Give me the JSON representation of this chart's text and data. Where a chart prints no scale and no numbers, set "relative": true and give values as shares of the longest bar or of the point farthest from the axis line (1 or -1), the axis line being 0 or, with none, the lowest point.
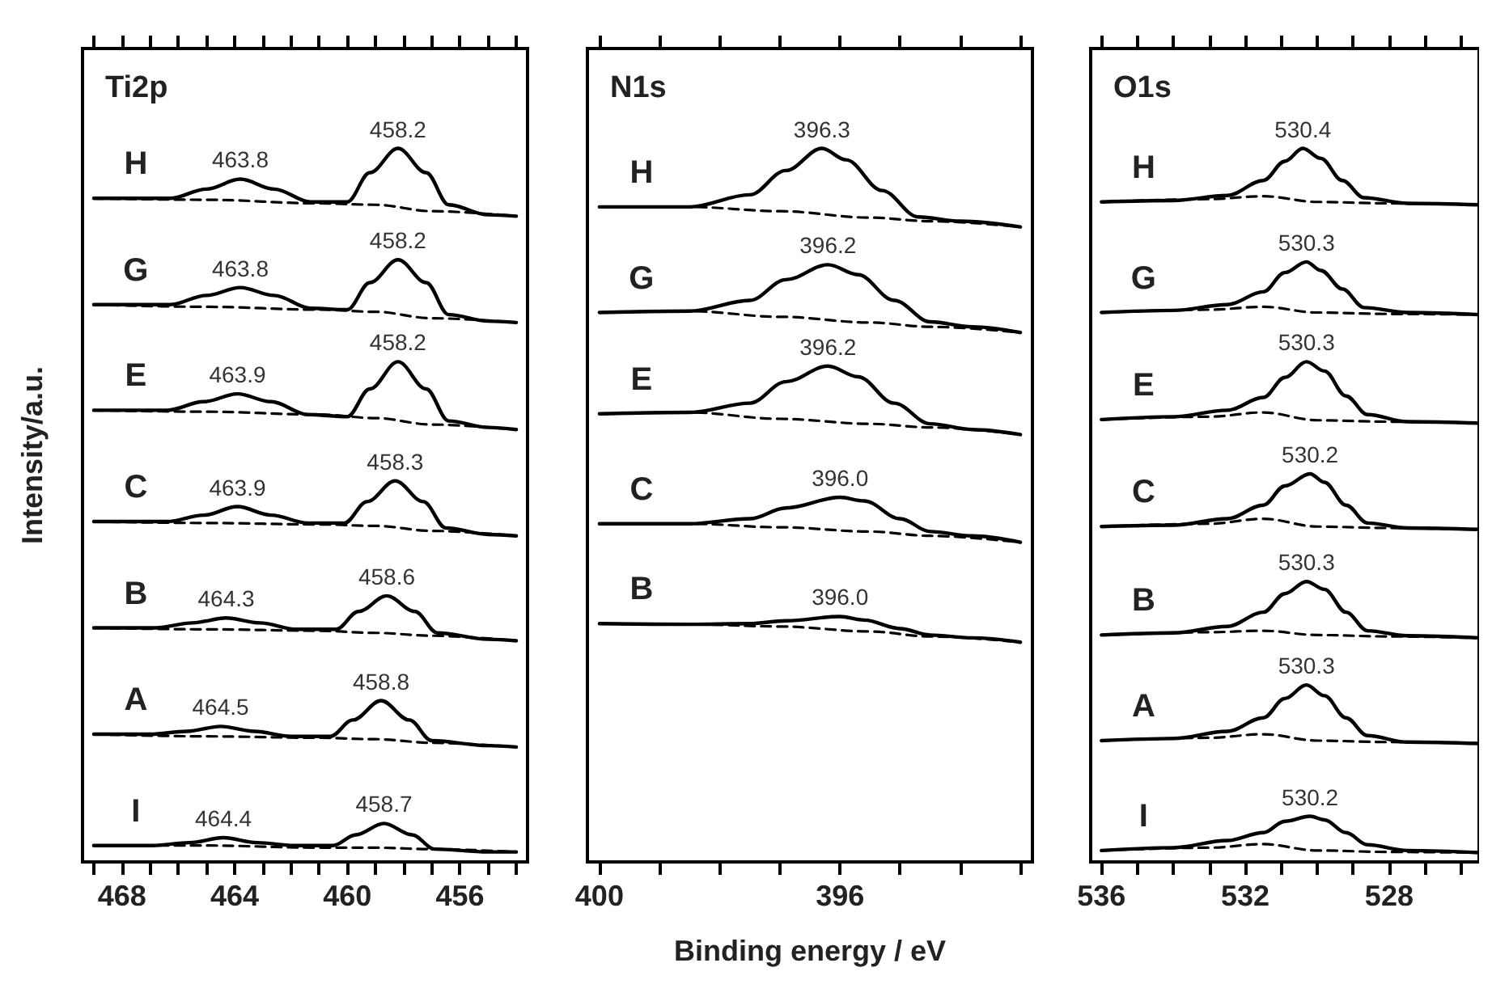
{
  "chart_data": [
    {
      "type": "line",
      "title": "Ti2p",
      "ylabel": "Intensity/a.u.",
      "relative": true,
      "marker": "none",
      "line_style": "solid",
      "tick_labels": "x",
      "xlim": [
        469.4,
        453.6
      ],
      "xticks": [
        {
          "value": 469,
          "label": null
        },
        468,
        {
          "value": 467,
          "label": null
        },
        {
          "value": 466,
          "label": null
        },
        {
          "value": 465,
          "label": null
        },
        464,
        {
          "value": 463,
          "label": null
        },
        {
          "value": 462,
          "label": null
        },
        {
          "value": 461,
          "label": null
        },
        460,
        {
          "value": 459,
          "label": null
        },
        {
          "value": 458,
          "label": null
        },
        {
          "value": 457,
          "label": null
        },
        456,
        {
          "value": 455,
          "label": null
        },
        {
          "value": 454,
          "label": null
        }
      ],
      "series": [
        {
          "name": "H",
          "color": "#000000",
          "x": [
            469,
            466.3,
            465,
            463.8,
            462.6,
            461.3,
            460,
            459.2,
            458.2,
            457.2,
            456.4,
            455,
            454
          ],
          "values": [
            0.93,
            0.93,
            0.943,
            0.957,
            0.943,
            0.925,
            0.925,
            0.966,
            1.0,
            0.966,
            0.921,
            0.907,
            0.905
          ]
        },
        {
          "color": "#000000",
          "line_style": "dashed",
          "x": [
            469,
            465,
            461,
            459,
            457,
            454
          ],
          "values": [
            0.93,
            0.928,
            0.923,
            0.921,
            0.912,
            0.905
          ]
        },
        {
          "name": "G",
          "color": "#000000",
          "x": [
            469,
            466.3,
            465,
            463.8,
            462.6,
            461.3,
            460,
            459.2,
            458.2,
            457.2,
            456.4,
            455,
            454
          ],
          "values": [
            0.781,
            0.781,
            0.794,
            0.805,
            0.794,
            0.776,
            0.774,
            0.812,
            0.844,
            0.812,
            0.767,
            0.758,
            0.756
          ]
        },
        {
          "color": "#000000",
          "line_style": "dashed",
          "x": [
            469,
            465,
            461,
            459,
            457,
            454
          ],
          "values": [
            0.781,
            0.778,
            0.774,
            0.771,
            0.762,
            0.756
          ]
        },
        {
          "name": "E",
          "color": "#000000",
          "x": [
            469,
            466.4,
            465.1,
            463.9,
            462.7,
            461.4,
            460,
            459.2,
            458.2,
            457.2,
            456.4,
            455,
            454
          ],
          "values": [
            0.633,
            0.633,
            0.645,
            0.656,
            0.645,
            0.627,
            0.624,
            0.663,
            0.701,
            0.663,
            0.618,
            0.609,
            0.606
          ]
        },
        {
          "color": "#000000",
          "line_style": "dashed",
          "x": [
            469,
            465,
            461,
            459,
            457,
            454
          ],
          "values": [
            0.633,
            0.631,
            0.627,
            0.622,
            0.613,
            0.606
          ]
        },
        {
          "name": "C",
          "color": "#000000",
          "x": [
            469,
            466.4,
            465.1,
            463.9,
            462.7,
            461.4,
            460.1,
            459.3,
            458.3,
            457.3,
            456.5,
            455,
            454
          ],
          "values": [
            0.477,
            0.477,
            0.486,
            0.498,
            0.486,
            0.475,
            0.475,
            0.505,
            0.534,
            0.505,
            0.468,
            0.459,
            0.457
          ]
        },
        {
          "color": "#000000",
          "line_style": "dashed",
          "x": [
            469,
            465,
            461,
            459,
            457,
            454
          ],
          "values": [
            0.477,
            0.475,
            0.473,
            0.471,
            0.464,
            0.457
          ]
        },
        {
          "name": "B",
          "color": "#000000",
          "x": [
            469,
            466.8,
            465.5,
            464.3,
            463.1,
            461.8,
            460.4,
            459.6,
            458.6,
            457.6,
            456.8,
            455,
            454
          ],
          "values": [
            0.328,
            0.328,
            0.335,
            0.342,
            0.335,
            0.326,
            0.326,
            0.351,
            0.373,
            0.351,
            0.321,
            0.312,
            0.31
          ]
        },
        {
          "color": "#000000",
          "line_style": "dashed",
          "x": [
            469,
            465,
            461,
            459,
            457,
            454
          ],
          "values": [
            0.328,
            0.326,
            0.324,
            0.321,
            0.317,
            0.31
          ]
        },
        {
          "name": "A",
          "color": "#000000",
          "x": [
            469,
            467,
            465.7,
            464.5,
            463.3,
            462,
            460.6,
            459.8,
            458.8,
            457.8,
            457,
            455,
            454
          ],
          "values": [
            0.179,
            0.179,
            0.183,
            0.19,
            0.183,
            0.176,
            0.176,
            0.199,
            0.226,
            0.199,
            0.17,
            0.163,
            0.161
          ]
        },
        {
          "color": "#000000",
          "line_style": "dashed",
          "x": [
            469,
            465,
            461,
            459,
            457,
            454
          ],
          "values": [
            0.179,
            0.176,
            0.174,
            0.172,
            0.167,
            0.161
          ]
        },
        {
          "name": "I",
          "color": "#000000",
          "x": [
            469,
            466.9,
            465.6,
            464.4,
            463.2,
            461.9,
            460.5,
            459.7,
            458.7,
            457.7,
            456.9,
            455,
            454
          ],
          "values": [
            0.023,
            0.023,
            0.027,
            0.034,
            0.027,
            0.023,
            0.023,
            0.038,
            0.054,
            0.038,
            0.018,
            0.014,
            0.014
          ]
        },
        {
          "color": "#000000",
          "line_style": "dashed",
          "x": [
            469,
            465,
            461,
            459,
            457,
            454
          ],
          "values": [
            0.023,
            0.023,
            0.02,
            0.02,
            0.018,
            0.014
          ]
        }
      ],
      "annotations": [
        {
          "text": "463.8",
          "x": 463.8,
          "y": 0.957
        },
        {
          "text": "458.2",
          "x": 458.2,
          "y": 1.0
        },
        {
          "text": "463.8",
          "x": 463.8,
          "y": 0.805
        },
        {
          "text": "458.2",
          "x": 458.2,
          "y": 0.844
        },
        {
          "text": "463.9",
          "x": 463.9,
          "y": 0.656
        },
        {
          "text": "458.2",
          "x": 458.2,
          "y": 0.701
        },
        {
          "text": "463.9",
          "x": 463.9,
          "y": 0.498
        },
        {
          "text": "458.3",
          "x": 458.3,
          "y": 0.534
        },
        {
          "text": "464.3",
          "x": 464.3,
          "y": 0.342
        },
        {
          "text": "458.6",
          "x": 458.6,
          "y": 0.373
        },
        {
          "text": "464.5",
          "x": 464.5,
          "y": 0.19
        },
        {
          "text": "458.8",
          "x": 458.8,
          "y": 0.226
        },
        {
          "text": "464.4",
          "x": 464.4,
          "y": 0.034
        },
        {
          "text": "458.7",
          "x": 458.7,
          "y": 0.054
        }
      ]
    },
    {
      "type": "line",
      "title": "N1s",
      "xlabel": "Binding energy / eV",
      "relative": true,
      "marker": "none",
      "line_style": "solid",
      "tick_labels": "x",
      "xlim": [
        400.2,
        392.8
      ],
      "xticks": [
        400,
        {
          "value": 399,
          "label": null
        },
        {
          "value": 398,
          "label": null
        },
        {
          "value": 397,
          "label": null
        },
        396,
        {
          "value": 395,
          "label": null
        },
        {
          "value": 394,
          "label": null
        },
        {
          "value": 393,
          "label": null
        }
      ],
      "series": [
        {
          "name": "H",
          "color": "#000000",
          "x": [
            400,
            398.5,
            397.5,
            396.9,
            396.3,
            395.9,
            395.3,
            394.7,
            394,
            393
          ],
          "values": [
            0.918,
            0.918,
            0.935,
            0.969,
            1.0,
            0.984,
            0.941,
            0.904,
            0.898,
            0.89
          ]
        },
        {
          "color": "#000000",
          "line_style": "dashed",
          "x": [
            400,
            398.5,
            397,
            395.5,
            394.5,
            393
          ],
          "values": [
            0.918,
            0.918,
            0.912,
            0.903,
            0.898,
            0.89
          ]
        },
        {
          "name": "G",
          "color": "#000000",
          "x": [
            400,
            398.5,
            397.5,
            396.9,
            396.2,
            395.7,
            395.1,
            394.5,
            393.8,
            393
          ],
          "values": [
            0.77,
            0.772,
            0.787,
            0.816,
            0.837,
            0.823,
            0.787,
            0.757,
            0.75,
            0.742
          ]
        },
        {
          "color": "#000000",
          "line_style": "dashed",
          "x": [
            400,
            398.5,
            397,
            395.5,
            394.5,
            393
          ],
          "values": [
            0.77,
            0.772,
            0.764,
            0.756,
            0.75,
            0.742
          ]
        },
        {
          "name": "E",
          "color": "#000000",
          "x": [
            400,
            398.5,
            397.5,
            396.9,
            396.2,
            395.7,
            395.1,
            394.5,
            393.8,
            393
          ],
          "values": [
            0.628,
            0.63,
            0.643,
            0.673,
            0.695,
            0.68,
            0.643,
            0.614,
            0.606,
            0.599
          ]
        },
        {
          "color": "#000000",
          "line_style": "dashed",
          "x": [
            400,
            398.5,
            397,
            395.5,
            394.5,
            393
          ],
          "values": [
            0.628,
            0.63,
            0.621,
            0.614,
            0.609,
            0.599
          ]
        },
        {
          "name": "C",
          "color": "#000000",
          "x": [
            400,
            398.5,
            397.5,
            396.9,
            396.0,
            395.6,
            395,
            394.5,
            393.8,
            393
          ],
          "values": [
            0.474,
            0.474,
            0.481,
            0.496,
            0.511,
            0.506,
            0.481,
            0.463,
            0.457,
            0.448
          ]
        },
        {
          "color": "#000000",
          "line_style": "dashed",
          "x": [
            400,
            398.5,
            397,
            395.5,
            394.5,
            393
          ],
          "values": [
            0.474,
            0.474,
            0.469,
            0.463,
            0.457,
            0.448
          ]
        },
        {
          "name": "B",
          "color": "#000000",
          "x": [
            400,
            398.5,
            397.5,
            396.9,
            396.0,
            395.6,
            395,
            394.5,
            393.8,
            393
          ],
          "values": [
            0.334,
            0.333,
            0.334,
            0.338,
            0.344,
            0.339,
            0.327,
            0.318,
            0.314,
            0.308
          ]
        },
        {
          "color": "#000000",
          "line_style": "dashed",
          "x": [
            400,
            398.5,
            397,
            395.5,
            394.5,
            393
          ],
          "values": [
            0.334,
            0.333,
            0.33,
            0.323,
            0.316,
            0.308
          ]
        }
      ],
      "annotations": [
        {
          "text": "396.3",
          "x": 396.3,
          "y": 1.0
        },
        {
          "text": "396.2",
          "x": 396.2,
          "y": 0.837
        },
        {
          "text": "396.2",
          "x": 396.2,
          "y": 0.695
        },
        {
          "text": "396.0",
          "x": 396.0,
          "y": 0.511
        },
        {
          "text": "396.0",
          "x": 396.0,
          "y": 0.344
        }
      ]
    },
    {
      "type": "line",
      "title": "O1s",
      "relative": true,
      "marker": "none",
      "line_style": "solid",
      "tick_labels": "x",
      "xlim": [
        536.3,
        525.5
      ],
      "xticks": [
        536,
        {
          "value": 535,
          "label": null
        },
        {
          "value": 534,
          "label": null
        },
        {
          "value": 533,
          "label": null
        },
        532,
        {
          "value": 531,
          "label": null
        },
        {
          "value": 530,
          "label": null
        },
        {
          "value": 529,
          "label": null
        },
        528,
        {
          "value": 527,
          "label": null
        },
        {
          "value": 526,
          "label": null
        }
      ],
      "series": [
        {
          "name": "H",
          "color": "#000000",
          "x": [
            536,
            534,
            532.5,
            531.5,
            530.9,
            530.4,
            529.9,
            529.3,
            528.7,
            527.5,
            525.5
          ],
          "values": [
            0.925,
            0.927,
            0.934,
            0.955,
            0.982,
            1.0,
            0.986,
            0.955,
            0.931,
            0.923,
            0.921
          ]
        },
        {
          "color": "#000000",
          "line_style": "dashed",
          "x": [
            536,
            533,
            531.5,
            530,
            528,
            525.5
          ],
          "values": [
            0.925,
            0.929,
            0.933,
            0.925,
            0.923,
            0.921
          ]
        },
        {
          "name": "G",
          "color": "#000000",
          "x": [
            536,
            534,
            532.5,
            531.5,
            530.9,
            530.3,
            529.9,
            529.3,
            528.7,
            527.5,
            525.5
          ],
          "values": [
            0.77,
            0.773,
            0.781,
            0.799,
            0.826,
            0.841,
            0.829,
            0.803,
            0.777,
            0.77,
            0.767
          ]
        },
        {
          "color": "#000000",
          "line_style": "dashed",
          "x": [
            536,
            533,
            531.5,
            530,
            528,
            525.5
          ],
          "values": [
            0.77,
            0.774,
            0.778,
            0.77,
            0.768,
            0.767
          ]
        },
        {
          "name": "E",
          "color": "#000000",
          "x": [
            536,
            534,
            532.5,
            531.5,
            530.9,
            530.3,
            529.8,
            529.2,
            528.6,
            527.5,
            525.5
          ],
          "values": [
            0.62,
            0.624,
            0.633,
            0.651,
            0.679,
            0.701,
            0.688,
            0.653,
            0.627,
            0.617,
            0.615
          ]
        },
        {
          "color": "#000000",
          "line_style": "dashed",
          "x": [
            536,
            533,
            531.5,
            530,
            528,
            525.5
          ],
          "values": [
            0.62,
            0.624,
            0.63,
            0.619,
            0.617,
            0.615
          ]
        },
        {
          "name": "C",
          "color": "#000000",
          "x": [
            536,
            534,
            532.5,
            531.5,
            530.9,
            530.2,
            529.8,
            529.2,
            528.6,
            527.5,
            525.5
          ],
          "values": [
            0.47,
            0.472,
            0.481,
            0.5,
            0.527,
            0.544,
            0.532,
            0.5,
            0.475,
            0.468,
            0.466
          ]
        },
        {
          "color": "#000000",
          "line_style": "dashed",
          "x": [
            536,
            533,
            531.5,
            530,
            528,
            525.5
          ],
          "values": [
            0.47,
            0.474,
            0.481,
            0.47,
            0.468,
            0.466
          ]
        },
        {
          "name": "B",
          "color": "#000000",
          "x": [
            536,
            534,
            532.5,
            531.5,
            530.9,
            530.3,
            529.8,
            529.2,
            528.6,
            527.5,
            525.5
          ],
          "values": [
            0.318,
            0.321,
            0.33,
            0.35,
            0.376,
            0.393,
            0.382,
            0.35,
            0.324,
            0.317,
            0.314
          ]
        },
        {
          "color": "#000000",
          "line_style": "dashed",
          "x": [
            536,
            533,
            531.5,
            530,
            528,
            525.5
          ],
          "values": [
            0.318,
            0.322,
            0.324,
            0.318,
            0.316,
            0.314
          ]
        },
        {
          "name": "A",
          "color": "#000000",
          "x": [
            536,
            534,
            532.5,
            531.5,
            530.9,
            530.3,
            529.8,
            529.2,
            528.6,
            527.5,
            525.5
          ],
          "values": [
            0.17,
            0.173,
            0.183,
            0.202,
            0.229,
            0.248,
            0.233,
            0.202,
            0.177,
            0.168,
            0.166
          ]
        },
        {
          "color": "#000000",
          "line_style": "dashed",
          "x": [
            536,
            533,
            531.5,
            530,
            528,
            525.5
          ],
          "values": [
            0.17,
            0.174,
            0.179,
            0.17,
            0.168,
            0.166
          ]
        },
        {
          "name": "I",
          "color": "#000000",
          "x": [
            536,
            534,
            532.5,
            531.5,
            530.9,
            530.2,
            529.8,
            529.2,
            528.6,
            527.5,
            525.5
          ],
          "values": [
            0.016,
            0.02,
            0.03,
            0.041,
            0.057,
            0.064,
            0.059,
            0.041,
            0.024,
            0.016,
            0.013
          ]
        },
        {
          "color": "#000000",
          "line_style": "dashed",
          "x": [
            536,
            533,
            531.5,
            530,
            528,
            525.5
          ],
          "values": [
            0.016,
            0.02,
            0.025,
            0.016,
            0.014,
            0.013
          ]
        }
      ],
      "annotations": [
        {
          "text": "530.4",
          "x": 530.4,
          "y": 1.0
        },
        {
          "text": "530.3",
          "x": 530.3,
          "y": 0.841
        },
        {
          "text": "530.3",
          "x": 530.3,
          "y": 0.701
        },
        {
          "text": "530.2",
          "x": 530.2,
          "y": 0.544
        },
        {
          "text": "530.3",
          "x": 530.3,
          "y": 0.393
        },
        {
          "text": "530.3",
          "x": 530.3,
          "y": 0.248
        },
        {
          "text": "530.2",
          "x": 530.2,
          "y": 0.064
        }
      ]
    }
  ]
}
